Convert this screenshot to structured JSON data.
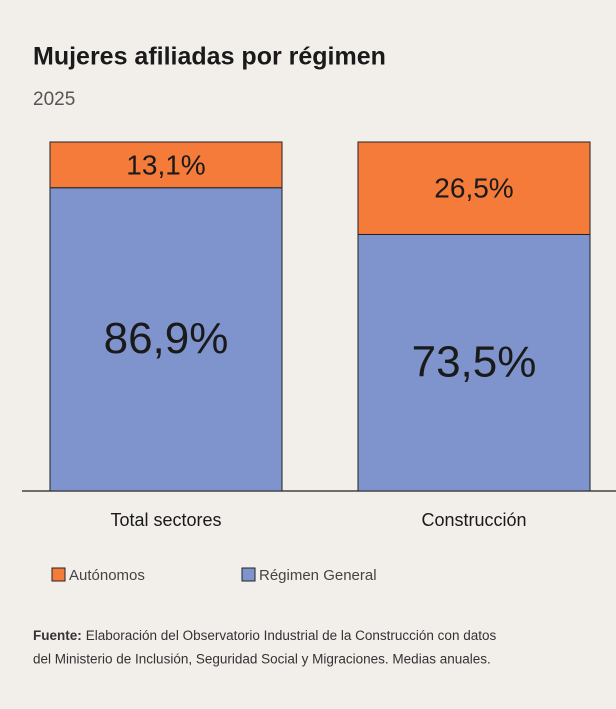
{
  "chart_data": {
    "type": "stacked_bar",
    "title": "Mujeres afiliadas por régimen",
    "subtitle": "2025",
    "categories": [
      "Total sectores",
      "Construcción"
    ],
    "series": [
      {
        "name": "Autónomos",
        "color": "#f47b3a",
        "values": [
          13.1,
          26.5
        ],
        "value_labels": [
          "13,1%",
          "26,5%"
        ]
      },
      {
        "name": "Régimen General",
        "color": "#7f94cc",
        "values": [
          86.9,
          73.5
        ],
        "value_labels": [
          "86,9%",
          "73,5%"
        ]
      }
    ],
    "ylim": [
      0,
      100
    ],
    "source_label": "Fuente:",
    "source_lines": [
      "Elaboración del Observatorio Industrial de la Construcción con datos",
      "del Ministerio de Inclusión, Seguridad Social y Migraciones. Medias anuales."
    ]
  }
}
